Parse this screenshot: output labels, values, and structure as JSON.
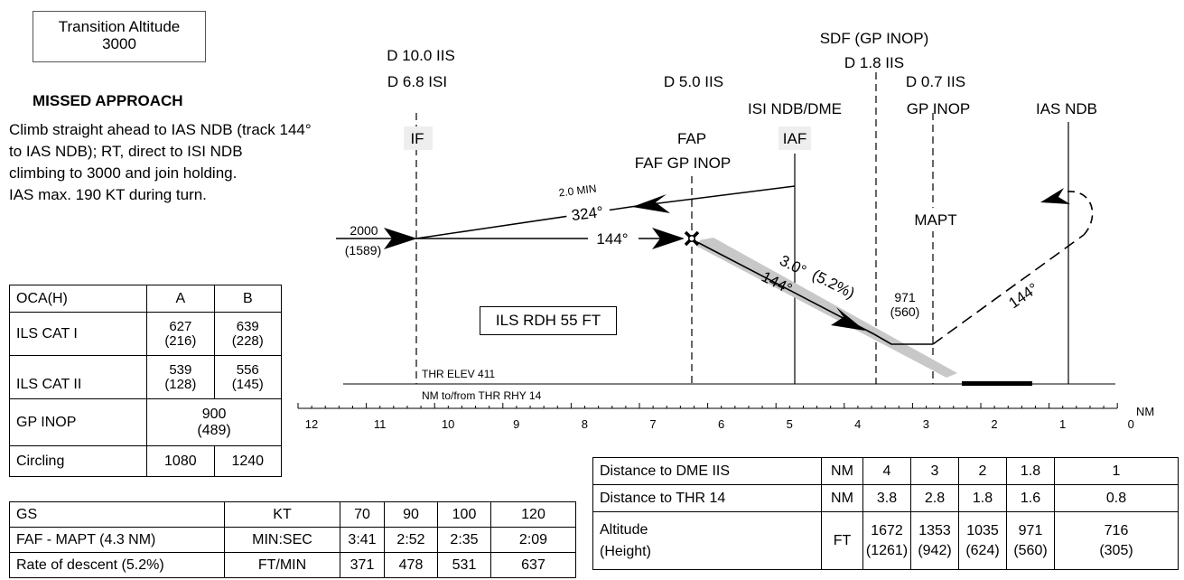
{
  "transition_altitude": {
    "line1": "Transition Altitude",
    "line2": "3000"
  },
  "missed_approach": {
    "title": "MISSED APPROACH",
    "lines": [
      "Climb straight ahead to IAS NDB (track 144°",
      "to IAS NDB); RT, direct to ISI NDB",
      "climbing to 3000 and join holding.",
      "IAS max. 190 KT during turn."
    ]
  },
  "fixes": {
    "d10_iis": "D 10.0 IIS",
    "d68_isi": "D 6.8 ISI",
    "if": "IF",
    "d5_iis": "D 5.0 IIS",
    "fap": "FAP",
    "faf_gp_inop": "FAF GP INOP",
    "isi_ndb_dme": "ISI NDB/DME",
    "iaf": "IAF",
    "sdf_gp_inop": "SDF (GP INOP)",
    "d18_iis": "D 1.8 IIS",
    "d07_iis": "D 0.7 IIS",
    "gp_inop": "GP INOP",
    "ias_ndb": "IAS NDB",
    "mapt": "MAPT"
  },
  "profile": {
    "alt_2000": "2000",
    "alt_1589": "(1589)",
    "inbound_track": "144°",
    "outbound_track": "324°",
    "two_min": "2.0 MIN",
    "glide_angle": "3.0°",
    "glide_pct": "(5.2%)",
    "gs_track": "144°",
    "missed_track": "144°",
    "mapt_alt": "971",
    "mapt_height": "(560)",
    "ils_rdh": "ILS RDH 55 FT",
    "thr_elev": "THR ELEV 411",
    "nm_to_from": "NM to/from THR RHY 14"
  },
  "scale": {
    "labels": [
      "12",
      "11",
      "10",
      "9",
      "8",
      "7",
      "6",
      "5",
      "4",
      "3",
      "2",
      "1",
      "0",
      "1",
      "2",
      "3"
    ],
    "unit": "NM"
  },
  "oca_table": {
    "header": [
      "OCA(H)",
      "A",
      "B"
    ],
    "rows": [
      {
        "label": "ILS CAT I",
        "a": "627",
        "a_h": "(216)",
        "b": "639",
        "b_h": "(228)"
      },
      {
        "label": "ILS CAT II",
        "a": "539",
        "a_h": "(128)",
        "b": "556",
        "b_h": "(145)"
      }
    ],
    "gp_inop": {
      "label": "GP INOP",
      "val": "900",
      "val_h": "(489)"
    },
    "circling": {
      "label": "Circling",
      "a": "1080",
      "b": "1240"
    }
  },
  "gs_table": {
    "header": [
      "GS",
      "KT",
      "70",
      "90",
      "100",
      "120"
    ],
    "rows": [
      [
        "FAF - MAPT (4.3 NM)",
        "MIN:SEC",
        "3:41",
        "2:52",
        "2:35",
        "2:09"
      ],
      [
        "Rate of descent (5.2%)",
        "FT/MIN",
        "371",
        "478",
        "531",
        "637"
      ]
    ]
  },
  "dist_table": {
    "row1": [
      "Distance to DME IIS",
      "NM",
      "4",
      "3",
      "2",
      "1.8",
      "1"
    ],
    "row2": [
      "Distance to THR 14",
      "NM",
      "3.8",
      "2.8",
      "1.8",
      "1.6",
      "0.8"
    ],
    "row3": {
      "label1": "Altitude",
      "label2": "(Height)",
      "unit": "FT",
      "alt": [
        "1672",
        "1353",
        "1035",
        "971",
        "716"
      ],
      "hgt": [
        "(1261)",
        "(942)",
        "(624)",
        "(560)",
        "(305)"
      ]
    }
  }
}
